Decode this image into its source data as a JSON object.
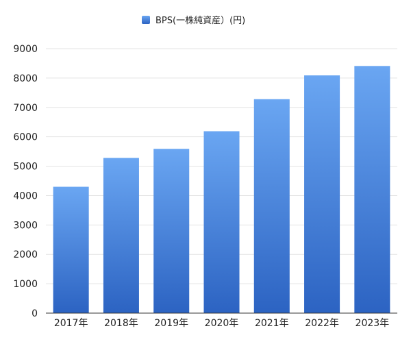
{
  "chart_data": {
    "type": "bar",
    "categories": [
      "2017年",
      "2018年",
      "2019年",
      "2020年",
      "2021年",
      "2022年",
      "2023年"
    ],
    "series": [
      {
        "name": "BPS(一株純資産）(円)",
        "values": [
          4300,
          5280,
          5590,
          6190,
          7280,
          8090,
          8410
        ]
      }
    ],
    "ylim": [
      0,
      9000
    ],
    "yticks": [
      0,
      1000,
      2000,
      3000,
      4000,
      5000,
      6000,
      7000,
      8000,
      9000
    ],
    "title": "",
    "xlabel": "",
    "ylabel": "",
    "grid": true,
    "legend_position": "top-center",
    "colors": {
      "bar_top": "#6aa6f2",
      "bar_bottom": "#2c63c2",
      "grid": "#e3e3e3",
      "axis": "#333333"
    }
  }
}
